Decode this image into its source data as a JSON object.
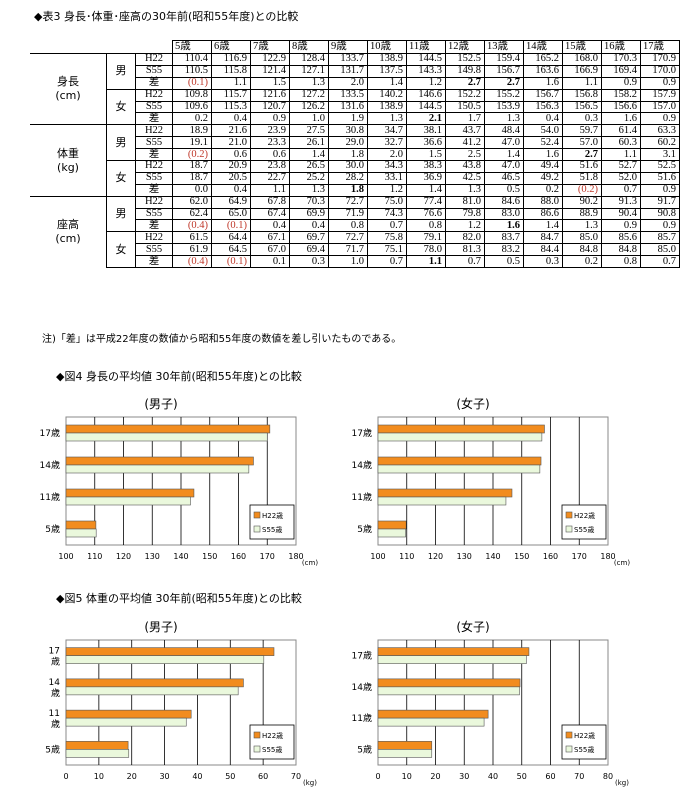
{
  "table3": {
    "title": "◆表3 身長･体重･座高の30年前(昭和55年度)との比較",
    "ages": [
      "5歳",
      "6歳",
      "7歳",
      "8歳",
      "9歳",
      "10歳",
      "11歳",
      "12歳",
      "13歳",
      "14歳",
      "15歳",
      "16歳",
      "17歳"
    ],
    "categories": [
      {
        "label": "身長\n(cm)",
        "groups": [
          {
            "sex": "男",
            "rows": [
              {
                "label": "H22",
                "values": [
                  "110.4",
                  "116.9",
                  "122.9",
                  "128.4",
                  "133.7",
                  "138.9",
                  "144.5",
                  "152.5",
                  "159.4",
                  "165.2",
                  "168.0",
                  "170.3",
                  "170.9"
                ]
              },
              {
                "label": "S55",
                "values": [
                  "110.5",
                  "115.8",
                  "121.4",
                  "127.1",
                  "131.7",
                  "137.5",
                  "143.3",
                  "149.8",
                  "156.7",
                  "163.6",
                  "166.9",
                  "169.4",
                  "170.0"
                ]
              },
              {
                "label": "差",
                "values": [
                  "(0.1)",
                  "1.1",
                  "1.5",
                  "1.3",
                  "2.0",
                  "1.4",
                  "1.2",
                  "2.7",
                  "2.7",
                  "1.6",
                  "1.1",
                  "0.9",
                  "0.9"
                ],
                "neg": [
                  0
                ],
                "bold": [
                  7,
                  8
                ]
              }
            ]
          },
          {
            "sex": "女",
            "rows": [
              {
                "label": "H22",
                "values": [
                  "109.8",
                  "115.7",
                  "121.6",
                  "127.2",
                  "133.5",
                  "140.2",
                  "146.6",
                  "152.2",
                  "155.2",
                  "156.7",
                  "156.8",
                  "158.2",
                  "157.9"
                ]
              },
              {
                "label": "S55",
                "values": [
                  "109.6",
                  "115.3",
                  "120.7",
                  "126.2",
                  "131.6",
                  "138.9",
                  "144.5",
                  "150.5",
                  "153.9",
                  "156.3",
                  "156.5",
                  "156.6",
                  "157.0"
                ]
              },
              {
                "label": "差",
                "values": [
                  "0.2",
                  "0.4",
                  "0.9",
                  "1.0",
                  "1.9",
                  "1.3",
                  "2.1",
                  "1.7",
                  "1.3",
                  "0.4",
                  "0.3",
                  "1.6",
                  "0.9"
                ],
                "neg": [],
                "bold": [
                  6
                ]
              }
            ]
          }
        ]
      },
      {
        "label": "体重\n(kg)",
        "groups": [
          {
            "sex": "男",
            "rows": [
              {
                "label": "H22",
                "values": [
                  "18.9",
                  "21.6",
                  "23.9",
                  "27.5",
                  "30.8",
                  "34.7",
                  "38.1",
                  "43.7",
                  "48.4",
                  "54.0",
                  "59.7",
                  "61.4",
                  "63.3"
                ]
              },
              {
                "label": "S55",
                "values": [
                  "19.1",
                  "21.0",
                  "23.3",
                  "26.1",
                  "29.0",
                  "32.7",
                  "36.6",
                  "41.2",
                  "47.0",
                  "52.4",
                  "57.0",
                  "60.3",
                  "60.2"
                ]
              },
              {
                "label": "差",
                "values": [
                  "(0.2)",
                  "0.6",
                  "0.6",
                  "1.4",
                  "1.8",
                  "2.0",
                  "1.5",
                  "2.5",
                  "1.4",
                  "1.6",
                  "2.7",
                  "1.1",
                  "3.1"
                ],
                "neg": [
                  0
                ],
                "bold": [
                  10
                ]
              }
            ]
          },
          {
            "sex": "女",
            "rows": [
              {
                "label": "H22",
                "values": [
                  "18.7",
                  "20.9",
                  "23.8",
                  "26.5",
                  "30.0",
                  "34.3",
                  "38.3",
                  "43.8",
                  "47.0",
                  "49.4",
                  "51.6",
                  "52.7",
                  "52.5"
                ]
              },
              {
                "label": "S55",
                "values": [
                  "18.7",
                  "20.5",
                  "22.7",
                  "25.2",
                  "28.2",
                  "33.1",
                  "36.9",
                  "42.5",
                  "46.5",
                  "49.2",
                  "51.8",
                  "52.0",
                  "51.6"
                ]
              },
              {
                "label": "差",
                "values": [
                  "0.0",
                  "0.4",
                  "1.1",
                  "1.3",
                  "1.8",
                  "1.2",
                  "1.4",
                  "1.3",
                  "0.5",
                  "0.2",
                  "(0.2)",
                  "0.7",
                  "0.9"
                ],
                "neg": [
                  10
                ],
                "bold": [
                  4
                ]
              }
            ]
          }
        ]
      },
      {
        "label": "座高\n(cm)",
        "groups": [
          {
            "sex": "男",
            "rows": [
              {
                "label": "H22",
                "values": [
                  "62.0",
                  "64.9",
                  "67.8",
                  "70.3",
                  "72.7",
                  "75.0",
                  "77.4",
                  "81.0",
                  "84.6",
                  "88.0",
                  "90.2",
                  "91.3",
                  "91.7"
                ]
              },
              {
                "label": "S55",
                "values": [
                  "62.4",
                  "65.0",
                  "67.4",
                  "69.9",
                  "71.9",
                  "74.3",
                  "76.6",
                  "79.8",
                  "83.0",
                  "86.6",
                  "88.9",
                  "90.4",
                  "90.8"
                ]
              },
              {
                "label": "差",
                "values": [
                  "(0.4)",
                  "(0.1)",
                  "0.4",
                  "0.4",
                  "0.8",
                  "0.7",
                  "0.8",
                  "1.2",
                  "1.6",
                  "1.4",
                  "1.3",
                  "0.9",
                  "0.9"
                ],
                "neg": [
                  0,
                  1
                ],
                "bold": [
                  8
                ]
              }
            ]
          },
          {
            "sex": "女",
            "rows": [
              {
                "label": "H22",
                "values": [
                  "61.5",
                  "64.4",
                  "67.1",
                  "69.7",
                  "72.7",
                  "75.8",
                  "79.1",
                  "82.0",
                  "83.7",
                  "84.7",
                  "85.0",
                  "85.6",
                  "85.7"
                ]
              },
              {
                "label": "S55",
                "values": [
                  "61.9",
                  "64.5",
                  "67.0",
                  "69.4",
                  "71.7",
                  "75.1",
                  "78.0",
                  "81.3",
                  "83.2",
                  "84.4",
                  "84.8",
                  "84.8",
                  "85.0"
                ]
              },
              {
                "label": "差",
                "values": [
                  "(0.4)",
                  "(0.1)",
                  "0.1",
                  "0.3",
                  "1.0",
                  "0.7",
                  "1.1",
                  "0.7",
                  "0.5",
                  "0.3",
                  "0.2",
                  "0.8",
                  "0.7"
                ],
                "neg": [
                  0,
                  1
                ],
                "bold": [
                  6
                ]
              }
            ]
          }
        ]
      }
    ],
    "note": "注)「差」は平成22年度の数値から昭和55年度の数値を差し引いたものである。"
  },
  "fig4": {
    "title": "◆図4 身長の平均値 30年前(昭和55年度)との比較"
  },
  "fig5": {
    "title": "◆図5 体重の平均値 30年前(昭和55年度)との比較"
  },
  "chart_data": [
    {
      "id": "fig4-male",
      "type": "bar",
      "orientation": "horizontal",
      "title": "(男子)",
      "categories": [
        "17歳",
        "14歳",
        "11歳",
        "5歳"
      ],
      "series": [
        {
          "name": "H22歳",
          "color": "#f28c1e",
          "values": [
            170.9,
            165.2,
            144.5,
            110.4
          ]
        },
        {
          "name": "S55歳",
          "color": "#eaf8dc",
          "values": [
            170.0,
            163.6,
            143.3,
            110.5
          ]
        }
      ],
      "xlim": [
        100,
        180
      ],
      "xticks": [
        100,
        110,
        120,
        130,
        140,
        150,
        160,
        170,
        180
      ],
      "xlabel": "(cm)",
      "legend_position": "bottom-right",
      "grid": true
    },
    {
      "id": "fig4-female",
      "type": "bar",
      "orientation": "horizontal",
      "title": "(女子)",
      "categories": [
        "17歳",
        "14歳",
        "11歳",
        "5歳"
      ],
      "series": [
        {
          "name": "H22歳",
          "color": "#f28c1e",
          "values": [
            157.9,
            156.7,
            146.6,
            109.8
          ]
        },
        {
          "name": "S55歳",
          "color": "#eaf8dc",
          "values": [
            157.0,
            156.3,
            144.5,
            109.6
          ]
        }
      ],
      "xlim": [
        100,
        180
      ],
      "xticks": [
        100,
        110,
        120,
        130,
        140,
        150,
        160,
        170,
        180
      ],
      "xlabel": "(cm)",
      "legend_position": "bottom-right",
      "grid": true
    },
    {
      "id": "fig5-male",
      "type": "bar",
      "orientation": "horizontal",
      "title": "(男子)",
      "categories": [
        "17\n歳",
        "14\n歳",
        "11\n歳",
        "5歳"
      ],
      "series": [
        {
          "name": "H22歳",
          "color": "#f28c1e",
          "values": [
            63.3,
            54.0,
            38.1,
            18.9
          ]
        },
        {
          "name": "S55歳",
          "color": "#eaf8dc",
          "values": [
            60.2,
            52.4,
            36.6,
            19.1
          ]
        }
      ],
      "xlim": [
        0,
        70
      ],
      "xticks": [
        0,
        10,
        20,
        30,
        40,
        50,
        60,
        70
      ],
      "xlabel": "(kg)",
      "legend_position": "bottom-right",
      "grid": true
    },
    {
      "id": "fig5-female",
      "type": "bar",
      "orientation": "horizontal",
      "title": "(女子)",
      "categories": [
        "17歳",
        "14歳",
        "11歳",
        "5歳"
      ],
      "series": [
        {
          "name": "H22歳",
          "color": "#f28c1e",
          "values": [
            52.5,
            49.4,
            38.3,
            18.7
          ]
        },
        {
          "name": "S55歳",
          "color": "#eaf8dc",
          "values": [
            51.6,
            49.2,
            36.9,
            18.7
          ]
        }
      ],
      "xlim": [
        0,
        80
      ],
      "xticks": [
        0,
        10,
        20,
        30,
        40,
        50,
        60,
        70,
        80
      ],
      "xlabel": "(kg)",
      "legend_position": "bottom-right",
      "grid": true
    }
  ]
}
